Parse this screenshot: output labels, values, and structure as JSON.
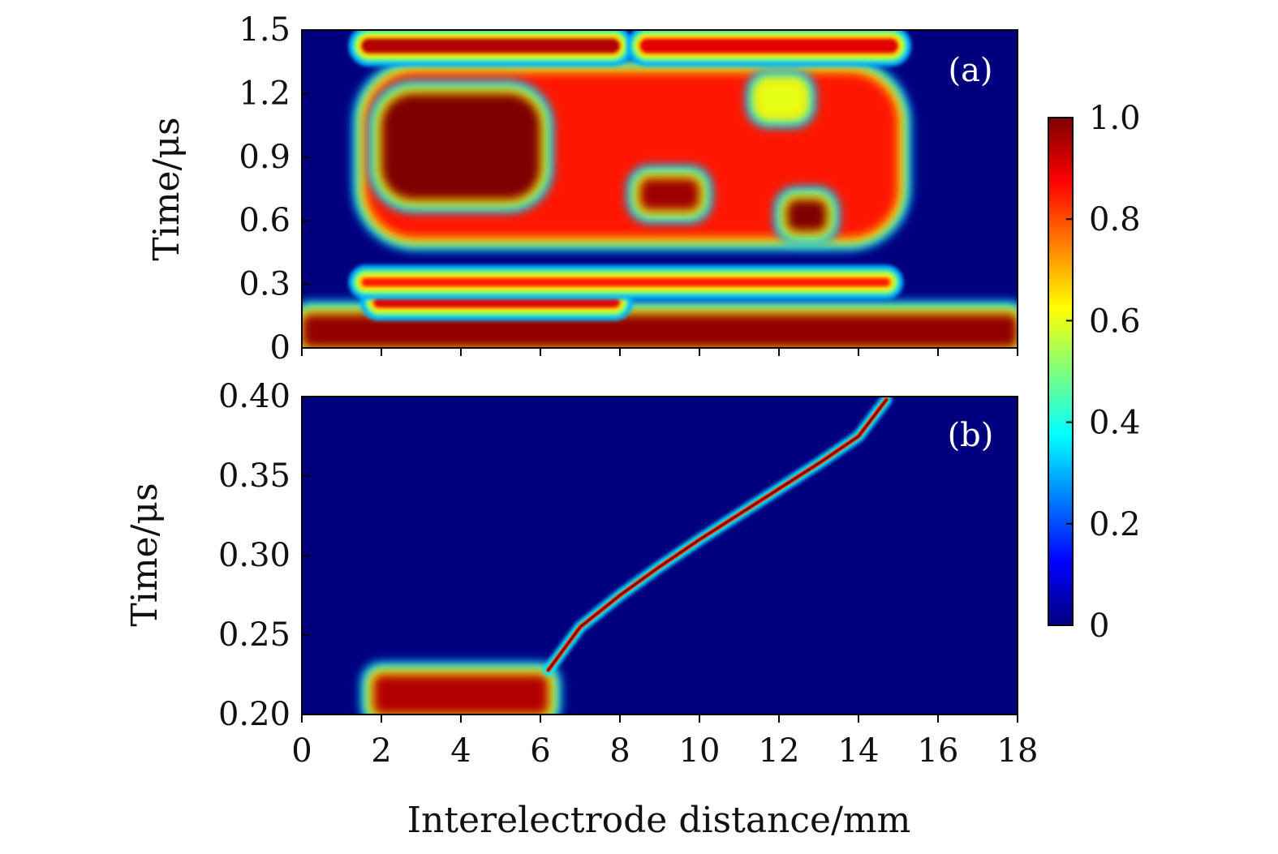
{
  "chart_data": [
    {
      "type": "heatmap",
      "panel_label": "(a)",
      "xlabel": "",
      "ylabel": "Time/μs",
      "xlim": [
        0,
        18
      ],
      "ylim": [
        0,
        1.5
      ],
      "x_ticks": [
        0,
        2,
        4,
        6,
        8,
        10,
        12,
        14,
        16,
        18
      ],
      "x_tick_labels_visible": false,
      "y_ticks": [
        0,
        0.3,
        0.6,
        0.9,
        1.2,
        1.5
      ],
      "y_tick_labels": [
        "0",
        "0.3",
        "0.6",
        "0.9",
        "1.2",
        "1.5"
      ],
      "colormap": "jet",
      "background_value": 0,
      "regions": [
        {
          "shape": "band",
          "x": [
            0,
            18
          ],
          "y": [
            0,
            0.16
          ],
          "value": 0.98
        },
        {
          "shape": "band",
          "x": [
            1.8,
            8
          ],
          "y": [
            0.19,
            0.24
          ],
          "value": 0.9
        },
        {
          "shape": "band",
          "x": [
            1.5,
            14.8
          ],
          "y": [
            0.29,
            0.33
          ],
          "value": 0.85
        },
        {
          "shape": "blob",
          "x": [
            1.6,
            15
          ],
          "y": [
            0.52,
            1.3
          ],
          "value": 0.85
        },
        {
          "shape": "blob",
          "x": [
            2,
            6
          ],
          "y": [
            0.7,
            1.2
          ],
          "value": 1.0
        },
        {
          "shape": "blob",
          "x": [
            8.5,
            10
          ],
          "y": [
            0.65,
            0.8
          ],
          "value": 0.97
        },
        {
          "shape": "blob",
          "x": [
            12.2,
            13.2
          ],
          "y": [
            0.55,
            0.7
          ],
          "value": 1.0
        },
        {
          "shape": "blob",
          "x": [
            11.5,
            12.6
          ],
          "y": [
            1.1,
            1.25
          ],
          "value": 0.6
        },
        {
          "shape": "band",
          "x": [
            1.5,
            8
          ],
          "y": [
            1.39,
            1.46
          ],
          "value": 0.95
        },
        {
          "shape": "band",
          "x": [
            8.5,
            15
          ],
          "y": [
            1.39,
            1.46
          ],
          "value": 0.9
        }
      ]
    },
    {
      "type": "heatmap",
      "panel_label": "(b)",
      "xlabel": "Interelectrode distance/mm",
      "ylabel": "Time/μs",
      "xlim": [
        0,
        18
      ],
      "ylim": [
        0.2,
        0.4
      ],
      "x_ticks": [
        0,
        2,
        4,
        6,
        8,
        10,
        12,
        14,
        16,
        18
      ],
      "x_tick_labels": [
        "0",
        "2",
        "4",
        "6",
        "8",
        "10",
        "12",
        "14",
        "16",
        "18"
      ],
      "y_ticks": [
        0.2,
        0.25,
        0.3,
        0.35,
        0.4
      ],
      "y_tick_labels": [
        "0.20",
        "0.25",
        "0.30",
        "0.35",
        "0.40"
      ],
      "colormap": "jet",
      "background_value": 0,
      "regions": [
        {
          "shape": "band",
          "x": [
            1.8,
            6.2
          ],
          "y": [
            0.2,
            0.225
          ],
          "value": 0.95
        }
      ],
      "front_path": {
        "x": [
          6.2,
          7,
          8,
          9,
          10,
          11,
          12,
          13,
          14,
          14.7
        ],
        "y": [
          0.228,
          0.255,
          0.275,
          0.293,
          0.31,
          0.326,
          0.342,
          0.358,
          0.375,
          0.398
        ],
        "value": 1.0
      }
    }
  ],
  "colorbar": {
    "min": 0,
    "max": 1.0,
    "ticks": [
      0,
      0.2,
      0.4,
      0.6,
      0.8,
      1.0
    ],
    "tick_labels": [
      "0",
      "0.2",
      "0.4",
      "0.6",
      "0.8",
      "1.0"
    ],
    "colormap": "jet"
  },
  "colors": {
    "jet_stops": [
      "#00007f",
      "#0000ff",
      "#007fff",
      "#00ffff",
      "#7fff7f",
      "#ffff00",
      "#ff7f00",
      "#ff0000",
      "#7f0000"
    ]
  }
}
